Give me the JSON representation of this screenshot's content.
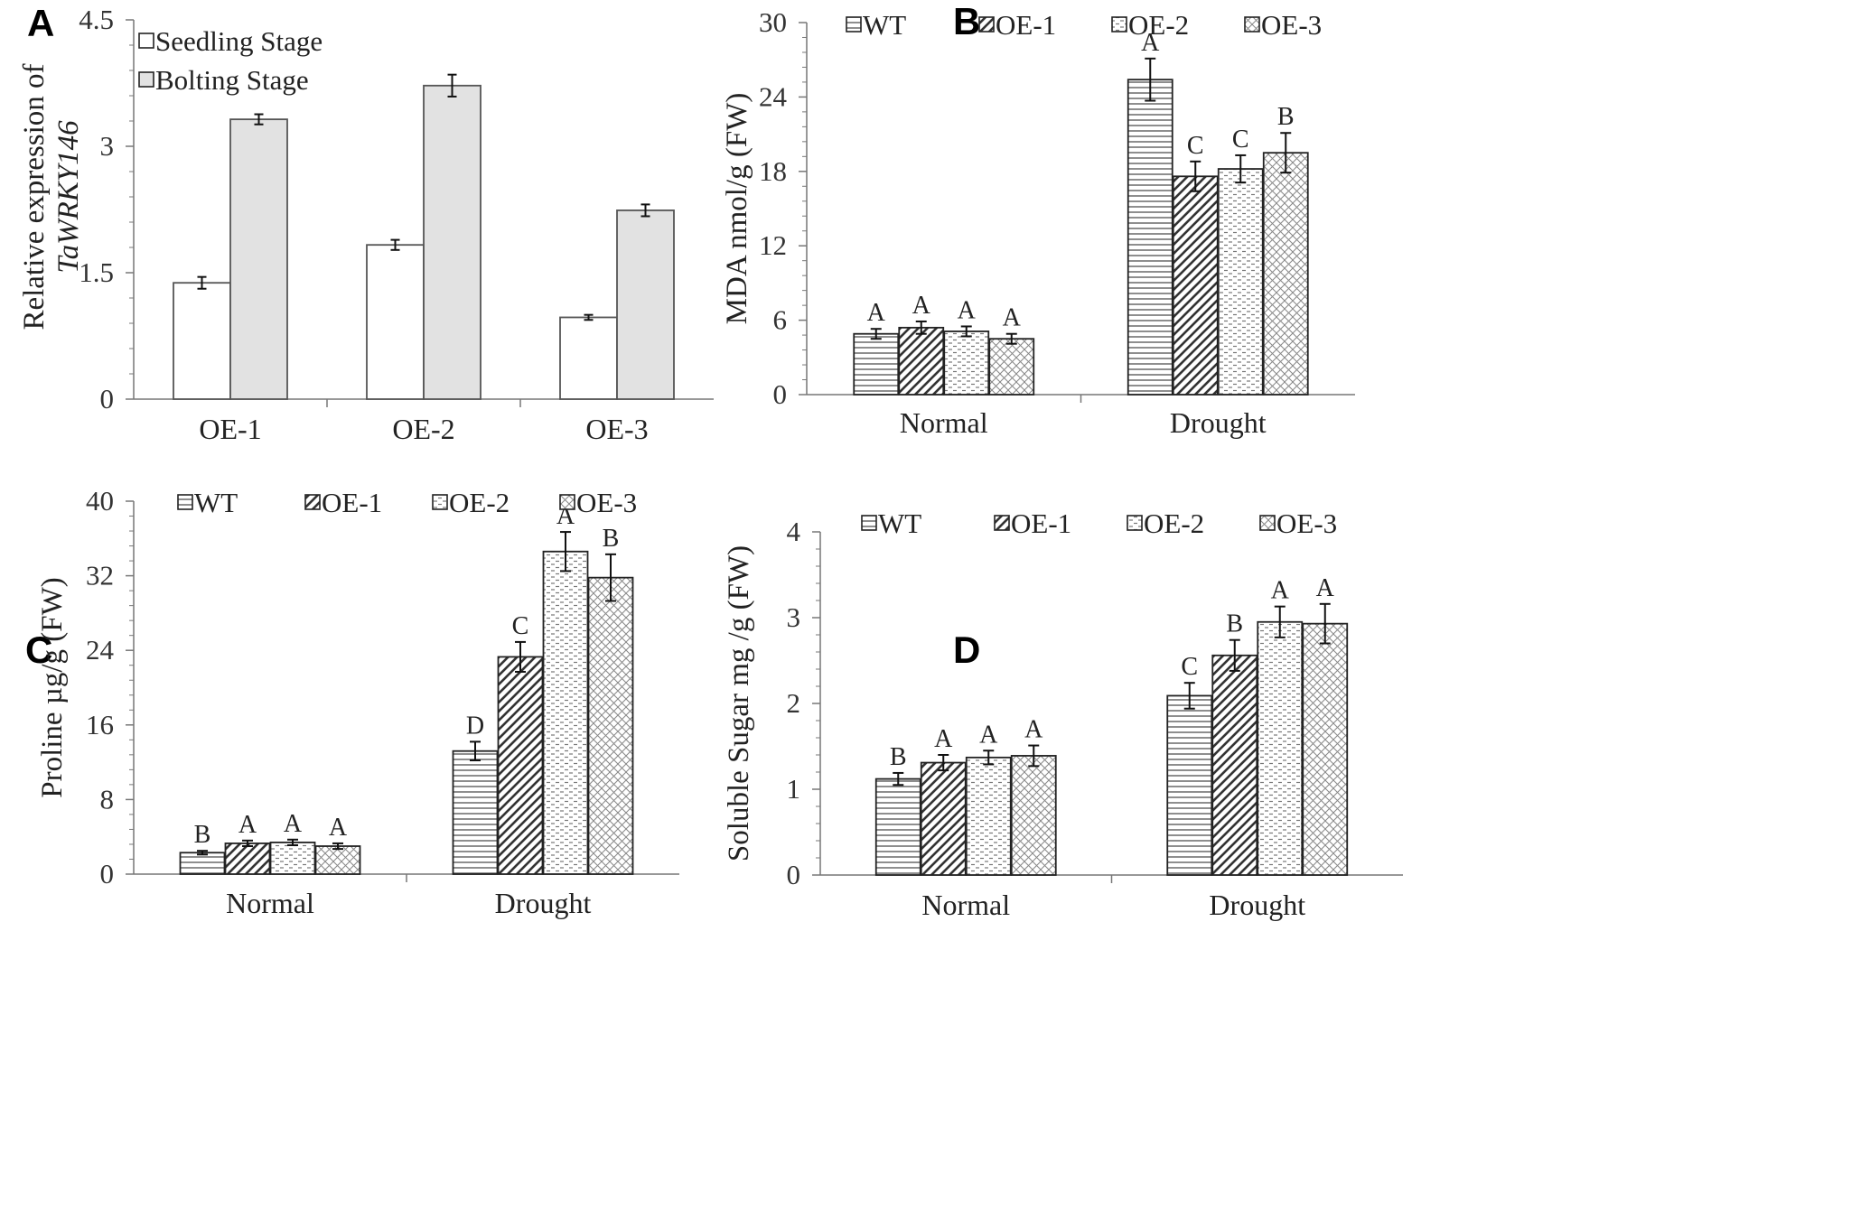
{
  "chart_data": [
    {
      "panel": "A",
      "type": "bar",
      "ylabel": "Relative expression of",
      "ylabel_italic": "TaWRKY146",
      "ylim": [
        0,
        4.5
      ],
      "yticks": [
        "0",
        "1.5",
        "3",
        "4.5"
      ],
      "categories": [
        "OE-1",
        "OE-2",
        "OE-3"
      ],
      "series": [
        {
          "name": "Seedling Stage",
          "fill": "#ffffff",
          "values": [
            1.38,
            1.83,
            0.97
          ],
          "errors": [
            0.07,
            0.06,
            0.03
          ]
        },
        {
          "name": "Bolting Stage",
          "fill": "#e2e2e2",
          "values": [
            3.32,
            3.72,
            2.24
          ],
          "errors": [
            0.06,
            0.13,
            0.07
          ]
        }
      ],
      "legend": "top-left"
    },
    {
      "panel": "B",
      "type": "bar",
      "ylabel": "MDA nmol/g (FW)",
      "ylim": [
        0,
        30
      ],
      "yticks": [
        "0",
        "6",
        "12",
        "18",
        "24",
        "30"
      ],
      "categories": [
        "Normal",
        "Drought"
      ],
      "series": [
        {
          "name": "WT",
          "pattern": "hlines",
          "values": [
            4.9,
            25.4
          ],
          "errors": [
            0.4,
            1.7
          ],
          "labels": [
            "A",
            "A"
          ]
        },
        {
          "name": "OE-1",
          "pattern": "diag",
          "values": [
            5.4,
            17.6
          ],
          "errors": [
            0.5,
            1.2
          ],
          "labels": [
            "A",
            "C"
          ]
        },
        {
          "name": "OE-2",
          "pattern": "dash",
          "values": [
            5.1,
            18.2
          ],
          "errors": [
            0.4,
            1.1
          ],
          "labels": [
            "A",
            "C"
          ]
        },
        {
          "name": "OE-3",
          "pattern": "cross",
          "values": [
            4.5,
            19.5
          ],
          "errors": [
            0.4,
            1.6
          ],
          "labels": [
            "A",
            "B"
          ]
        }
      ],
      "legend": "top"
    },
    {
      "panel": "C",
      "type": "bar",
      "ylabel": "Proline µg/g (FW)",
      "ylim": [
        0,
        40
      ],
      "yticks": [
        "0",
        "8",
        "16",
        "24",
        "32",
        "40"
      ],
      "categories": [
        "Normal",
        "Drought"
      ],
      "series": [
        {
          "name": "WT",
          "pattern": "hlines",
          "values": [
            2.3,
            13.2
          ],
          "errors": [
            0.2,
            1.0
          ],
          "labels": [
            "B",
            "D"
          ]
        },
        {
          "name": "OE-1",
          "pattern": "diag",
          "values": [
            3.3,
            23.3
          ],
          "errors": [
            0.3,
            1.6
          ],
          "labels": [
            "A",
            "C"
          ]
        },
        {
          "name": "OE-2",
          "pattern": "dash",
          "values": [
            3.4,
            34.6
          ],
          "errors": [
            0.3,
            2.1
          ],
          "labels": [
            "A",
            "A"
          ]
        },
        {
          "name": "OE-3",
          "pattern": "cross",
          "values": [
            3.0,
            31.8
          ],
          "errors": [
            0.3,
            2.5
          ],
          "labels": [
            "A",
            "B"
          ]
        }
      ],
      "legend": "top"
    },
    {
      "panel": "D",
      "type": "bar",
      "ylabel": "Soluble Sugar mg /g (FW)",
      "ylim": [
        0,
        4
      ],
      "yticks": [
        "0",
        "1",
        "2",
        "3",
        "4"
      ],
      "categories": [
        "Normal",
        "Drought"
      ],
      "series": [
        {
          "name": "WT",
          "pattern": "hlines",
          "values": [
            1.12,
            2.09
          ],
          "errors": [
            0.07,
            0.15
          ],
          "labels": [
            "B",
            "C"
          ]
        },
        {
          "name": "OE-1",
          "pattern": "diag",
          "values": [
            1.31,
            2.56
          ],
          "errors": [
            0.09,
            0.18
          ],
          "labels": [
            "A",
            "B"
          ]
        },
        {
          "name": "OE-2",
          "pattern": "dash",
          "values": [
            1.37,
            2.95
          ],
          "errors": [
            0.08,
            0.18
          ],
          "labels": [
            "A",
            "A"
          ]
        },
        {
          "name": "OE-3",
          "pattern": "cross",
          "values": [
            1.39,
            2.93
          ],
          "errors": [
            0.12,
            0.23
          ],
          "labels": [
            "A",
            "A"
          ]
        }
      ],
      "legend": "top"
    }
  ]
}
